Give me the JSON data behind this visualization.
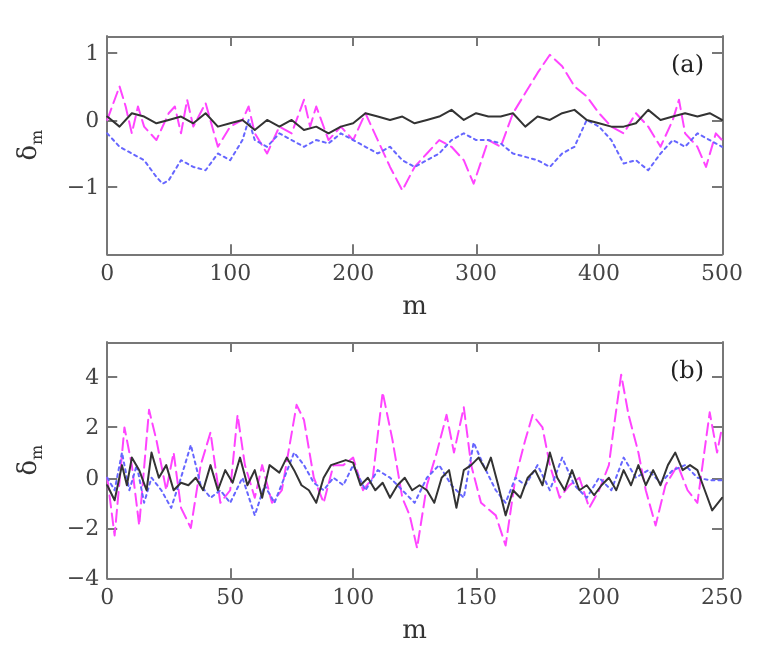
{
  "chart_data": [
    {
      "type": "line",
      "xlabel": "m",
      "ylabel": "δ$_{m}$",
      "annotations": [
        "(a)"
      ],
      "xlim": [
        0,
        500
      ],
      "xticks": [
        0,
        100,
        200,
        300,
        400,
        500
      ],
      "ylim": [
        -2,
        1.25
      ],
      "yticks": [
        -1,
        0,
        1
      ],
      "grid": false,
      "marker": "none",
      "series": [
        {
          "color": "#ff44ff",
          "line_style": "dashed",
          "x": [
            0,
            10,
            15,
            20,
            25,
            30,
            40,
            50,
            55,
            60,
            65,
            70,
            80,
            90,
            100,
            110,
            115,
            120,
            130,
            140,
            150,
            160,
            165,
            170,
            180,
            190,
            200,
            210,
            220,
            230,
            240,
            250,
            260,
            270,
            280,
            290,
            298,
            310,
            320,
            330,
            340,
            350,
            360,
            370,
            380,
            390,
            400,
            410,
            420,
            430,
            440,
            450,
            460,
            465,
            470,
            480,
            487,
            495,
            500
          ],
          "values": [
            0.0,
            0.5,
            0.2,
            -0.2,
            0.2,
            -0.1,
            -0.3,
            0.1,
            0.2,
            -0.2,
            0.3,
            -0.1,
            0.25,
            -0.4,
            -0.1,
            0.0,
            0.2,
            -0.2,
            -0.5,
            -0.1,
            -0.2,
            0.3,
            -0.1,
            0.2,
            -0.3,
            -0.1,
            -0.3,
            0.1,
            -0.3,
            -0.7,
            -1.05,
            -0.7,
            -0.5,
            -0.3,
            -0.4,
            -0.6,
            -0.95,
            -0.3,
            -0.4,
            0.1,
            0.4,
            0.7,
            0.97,
            0.8,
            0.5,
            0.35,
            0.1,
            -0.1,
            -0.2,
            0.1,
            -0.1,
            -0.4,
            0.0,
            0.3,
            -0.2,
            -0.4,
            -0.7,
            -0.2,
            -0.3
          ]
        },
        {
          "color": "#6666ff",
          "line_style": "dotted",
          "x": [
            0,
            10,
            20,
            30,
            40,
            45,
            50,
            60,
            70,
            80,
            90,
            100,
            110,
            115,
            120,
            130,
            140,
            150,
            160,
            170,
            180,
            190,
            200,
            210,
            220,
            230,
            240,
            250,
            260,
            270,
            280,
            290,
            300,
            310,
            320,
            330,
            340,
            350,
            360,
            370,
            380,
            385,
            390,
            400,
            410,
            420,
            430,
            440,
            450,
            460,
            470,
            480,
            490,
            500
          ],
          "values": [
            -0.2,
            -0.4,
            -0.5,
            -0.6,
            -0.85,
            -0.95,
            -0.9,
            -0.6,
            -0.7,
            -0.75,
            -0.5,
            -0.6,
            -0.3,
            0.0,
            -0.3,
            -0.4,
            -0.2,
            -0.3,
            -0.4,
            -0.3,
            -0.35,
            -0.2,
            -0.3,
            -0.4,
            -0.5,
            -0.4,
            -0.6,
            -0.7,
            -0.6,
            -0.5,
            -0.3,
            -0.2,
            -0.3,
            -0.3,
            -0.35,
            -0.5,
            -0.55,
            -0.6,
            -0.7,
            -0.5,
            -0.4,
            -0.2,
            0.0,
            -0.1,
            -0.3,
            -0.65,
            -0.6,
            -0.75,
            -0.5,
            -0.3,
            -0.4,
            -0.2,
            -0.3,
            -0.4
          ]
        },
        {
          "color": "#333333",
          "line_style": "solid",
          "x": [
            0,
            10,
            20,
            30,
            40,
            50,
            60,
            70,
            80,
            90,
            100,
            110,
            120,
            130,
            140,
            150,
            160,
            170,
            180,
            190,
            200,
            210,
            220,
            230,
            240,
            250,
            260,
            270,
            280,
            290,
            300,
            310,
            320,
            330,
            340,
            350,
            360,
            370,
            380,
            390,
            400,
            410,
            420,
            430,
            440,
            450,
            460,
            470,
            480,
            490,
            500
          ],
          "values": [
            0.05,
            -0.1,
            0.1,
            0.05,
            -0.05,
            0.0,
            0.05,
            -0.05,
            0.1,
            -0.1,
            -0.05,
            0.0,
            -0.15,
            0.0,
            -0.1,
            0.0,
            -0.15,
            -0.1,
            -0.2,
            -0.1,
            -0.05,
            0.1,
            0.05,
            0.0,
            0.05,
            -0.05,
            0.0,
            0.05,
            0.15,
            0.0,
            0.1,
            0.05,
            0.05,
            0.1,
            -0.1,
            0.05,
            0.0,
            0.1,
            0.15,
            0.0,
            -0.05,
            -0.1,
            -0.1,
            -0.05,
            0.15,
            0.0,
            0.05,
            0.1,
            0.05,
            0.1,
            0.0
          ]
        }
      ]
    },
    {
      "type": "line",
      "xlabel": "m",
      "ylabel": "δ$_{m}$",
      "annotations": [
        "(b)"
      ],
      "xlim": [
        0,
        250
      ],
      "xticks": [
        0,
        50,
        100,
        150,
        200,
        250
      ],
      "ylim": [
        -4,
        5.4
      ],
      "yticks": [
        -4,
        -2,
        0,
        2,
        4
      ],
      "grid": false,
      "marker": "none",
      "series": [
        {
          "color": "#ff44ff",
          "line_style": "dashed",
          "x": [
            0,
            3,
            7,
            10,
            13,
            17,
            20,
            24,
            27,
            30,
            34,
            38,
            42,
            46,
            50,
            53,
            56,
            60,
            63,
            67,
            71,
            77,
            80,
            84,
            88,
            92,
            96,
            100,
            104,
            108,
            112,
            116,
            120,
            123,
            126,
            130,
            134,
            138,
            141,
            145,
            148,
            152,
            158,
            162,
            166,
            170,
            173,
            177,
            180,
            184,
            188,
            192,
            196,
            200,
            204,
            206,
            209,
            212,
            216,
            219,
            223,
            227,
            232,
            236,
            240,
            245,
            248,
            250
          ],
          "values": [
            0.0,
            -2.3,
            2.0,
            0.5,
            -1.9,
            2.7,
            1.5,
            -0.5,
            1.0,
            -1.2,
            -2.0,
            0.5,
            1.8,
            -1.0,
            -0.5,
            2.5,
            0.5,
            -0.8,
            0.5,
            -1.0,
            -0.5,
            2.9,
            2.3,
            0.0,
            -1.0,
            0.5,
            0.5,
            0.8,
            -0.5,
            0.0,
            3.4,
            1.5,
            -0.8,
            -1.5,
            -2.8,
            -0.3,
            1.0,
            2.5,
            1.0,
            2.8,
            0.5,
            -1.0,
            -1.5,
            -2.7,
            0.0,
            1.5,
            2.5,
            2.0,
            0.5,
            -0.8,
            -0.3,
            0.0,
            -1.2,
            -0.5,
            0.5,
            2.0,
            4.1,
            2.5,
            1.0,
            -0.5,
            -1.9,
            -0.3,
            0.5,
            -0.5,
            -1.0,
            2.6,
            1.0,
            2.0
          ]
        },
        {
          "color": "#6666ff",
          "line_style": "dotted",
          "x": [
            0,
            3,
            6,
            9,
            12,
            15,
            18,
            22,
            26,
            30,
            34,
            38,
            42,
            46,
            50,
            55,
            60,
            64,
            68,
            72,
            76,
            80,
            84,
            88,
            92,
            96,
            100,
            105,
            110,
            115,
            120,
            125,
            130,
            135,
            140,
            145,
            149,
            153,
            158,
            162,
            166,
            170,
            175,
            180,
            185,
            190,
            195,
            200,
            205,
            210,
            215,
            220,
            225,
            230,
            235,
            240,
            245,
            250
          ],
          "values": [
            0.0,
            -0.5,
            1.0,
            -0.5,
            0.5,
            -1.0,
            0.0,
            -0.5,
            -1.2,
            0.0,
            1.3,
            -0.3,
            -0.8,
            -0.5,
            -1.0,
            0.0,
            -1.5,
            -0.3,
            -1.0,
            0.0,
            1.0,
            0.5,
            -0.2,
            -0.5,
            0.0,
            -0.3,
            0.5,
            -0.5,
            0.3,
            0.0,
            -0.5,
            -1.0,
            0.0,
            0.5,
            -0.3,
            -0.8,
            1.4,
            0.5,
            -0.5,
            -1.0,
            0.0,
            -0.3,
            0.5,
            -0.5,
            0.8,
            -0.3,
            -0.8,
            0.0,
            -0.5,
            0.8,
            0.0,
            0.3,
            -0.2,
            0.3,
            0.5,
            0.0,
            -0.1,
            -0.1
          ]
        },
        {
          "color": "#333333",
          "line_style": "solid",
          "x": [
            0,
            3,
            6,
            8,
            10,
            13,
            16,
            18,
            21,
            24,
            27,
            30,
            33,
            36,
            39,
            42,
            45,
            48,
            51,
            54,
            57,
            60,
            63,
            66,
            70,
            73,
            76,
            79,
            82,
            85,
            88,
            91,
            94,
            97,
            100,
            103,
            106,
            109,
            112,
            115,
            118,
            121,
            124,
            127,
            130,
            133,
            136,
            139,
            142,
            145,
            148,
            151,
            154,
            156,
            159,
            162,
            165,
            168,
            171,
            174,
            177,
            180,
            183,
            186,
            189,
            192,
            195,
            198,
            201,
            204,
            207,
            210,
            213,
            216,
            219,
            222,
            225,
            228,
            231,
            234,
            237,
            240,
            243,
            246,
            250
          ],
          "values": [
            -0.3,
            -0.9,
            0.5,
            -0.3,
            0.8,
            0.3,
            -0.5,
            1.0,
            0.0,
            0.5,
            -0.5,
            -0.2,
            -0.3,
            0.0,
            -0.5,
            0.5,
            -0.5,
            0.3,
            -0.2,
            0.8,
            -0.3,
            0.3,
            -0.8,
            0.5,
            0.2,
            0.8,
            0.3,
            -0.3,
            -0.5,
            -1.0,
            0.0,
            0.5,
            0.6,
            0.7,
            0.6,
            -0.3,
            0.0,
            -0.5,
            -0.2,
            -0.8,
            -0.3,
            0.0,
            -0.5,
            -0.3,
            -0.5,
            -1.0,
            0.0,
            0.3,
            -1.2,
            0.3,
            0.5,
            0.8,
            0.3,
            0.8,
            -0.3,
            -1.5,
            -0.5,
            -0.8,
            0.0,
            0.3,
            -0.3,
            1.0,
            0.0,
            -0.5,
            0.3,
            -0.5,
            -0.3,
            -0.7,
            -0.3,
            0.0,
            -0.5,
            0.3,
            -0.3,
            0.5,
            -0.3,
            0.3,
            -0.3,
            0.5,
            1.0,
            0.3,
            0.5,
            0.3,
            -0.5,
            -1.3,
            -0.8
          ]
        }
      ]
    }
  ]
}
